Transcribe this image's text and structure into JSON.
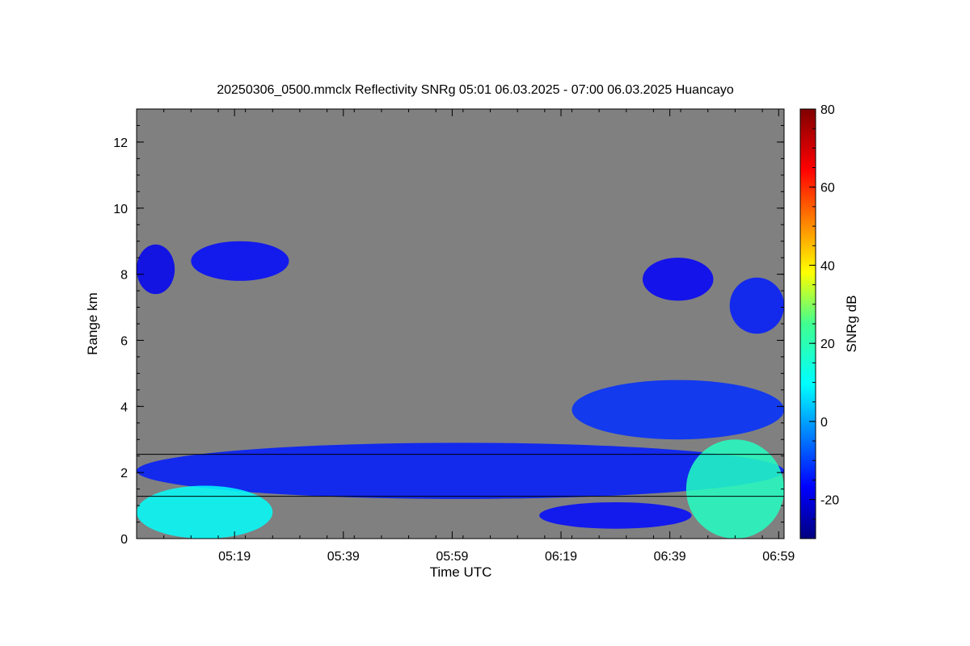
{
  "chart_data": {
    "type": "heatmap",
    "title": "20250306_0500.mmclx Reflectivity SNRg   05:01 06.03.2025 - 07:00 06.03.2025 Huancayo",
    "xlabel": "Time UTC",
    "ylabel": "Range km",
    "x_ticks": [
      "05:19",
      "05:39",
      "05:59",
      "06:19",
      "06:39",
      "06:59"
    ],
    "y_ticks": [
      "0",
      "2",
      "4",
      "6",
      "8",
      "10",
      "12"
    ],
    "xlim": [
      "05:01",
      "07:00"
    ],
    "ylim": [
      0,
      13
    ],
    "colorbar": {
      "label": "SNRg dB",
      "range": [
        -30,
        80
      ],
      "ticks": [
        "-20",
        "0",
        "20",
        "40",
        "60",
        "80"
      ]
    },
    "background_color": "#808080",
    "horizontal_lines_km": [
      2.55,
      1.28
    ],
    "echo_regions": [
      {
        "name": "upper-left-cloud",
        "t_start": "05:01",
        "t_end": "05:08",
        "r_min": 7.4,
        "r_max": 8.9,
        "snr_db": -18
      },
      {
        "name": "upper-cloud-05-20",
        "t_start": "05:11",
        "t_end": "05:29",
        "r_min": 7.8,
        "r_max": 9.0,
        "snr_db": -16
      },
      {
        "name": "upper-cloud-06-35",
        "t_start": "06:34",
        "t_end": "06:47",
        "r_min": 7.2,
        "r_max": 8.5,
        "snr_db": -17
      },
      {
        "name": "upper-cloud-06-50",
        "t_start": "06:50",
        "t_end": "07:00",
        "r_min": 6.2,
        "r_max": 7.9,
        "snr_db": -14
      },
      {
        "name": "mid-cloud-4km",
        "t_start": "06:21",
        "t_end": "07:00",
        "r_min": 3.0,
        "r_max": 4.8,
        "snr_db": -12
      },
      {
        "name": "boundary-layer-band",
        "t_start": "05:01",
        "t_end": "07:00",
        "r_min": 1.2,
        "r_max": 2.9,
        "snr_db": -14
      },
      {
        "name": "surface-echo-left",
        "t_start": "05:01",
        "t_end": "05:26",
        "r_min": 0.0,
        "r_max": 1.6,
        "snr_db": 10
      },
      {
        "name": "surface-echo-right",
        "t_start": "06:42",
        "t_end": "07:00",
        "r_min": 0.0,
        "r_max": 3.0,
        "snr_db": 18
      },
      {
        "name": "low-cloud-06-25",
        "t_start": "06:15",
        "t_end": "06:43",
        "r_min": 0.3,
        "r_max": 1.1,
        "snr_db": -16
      }
    ]
  }
}
